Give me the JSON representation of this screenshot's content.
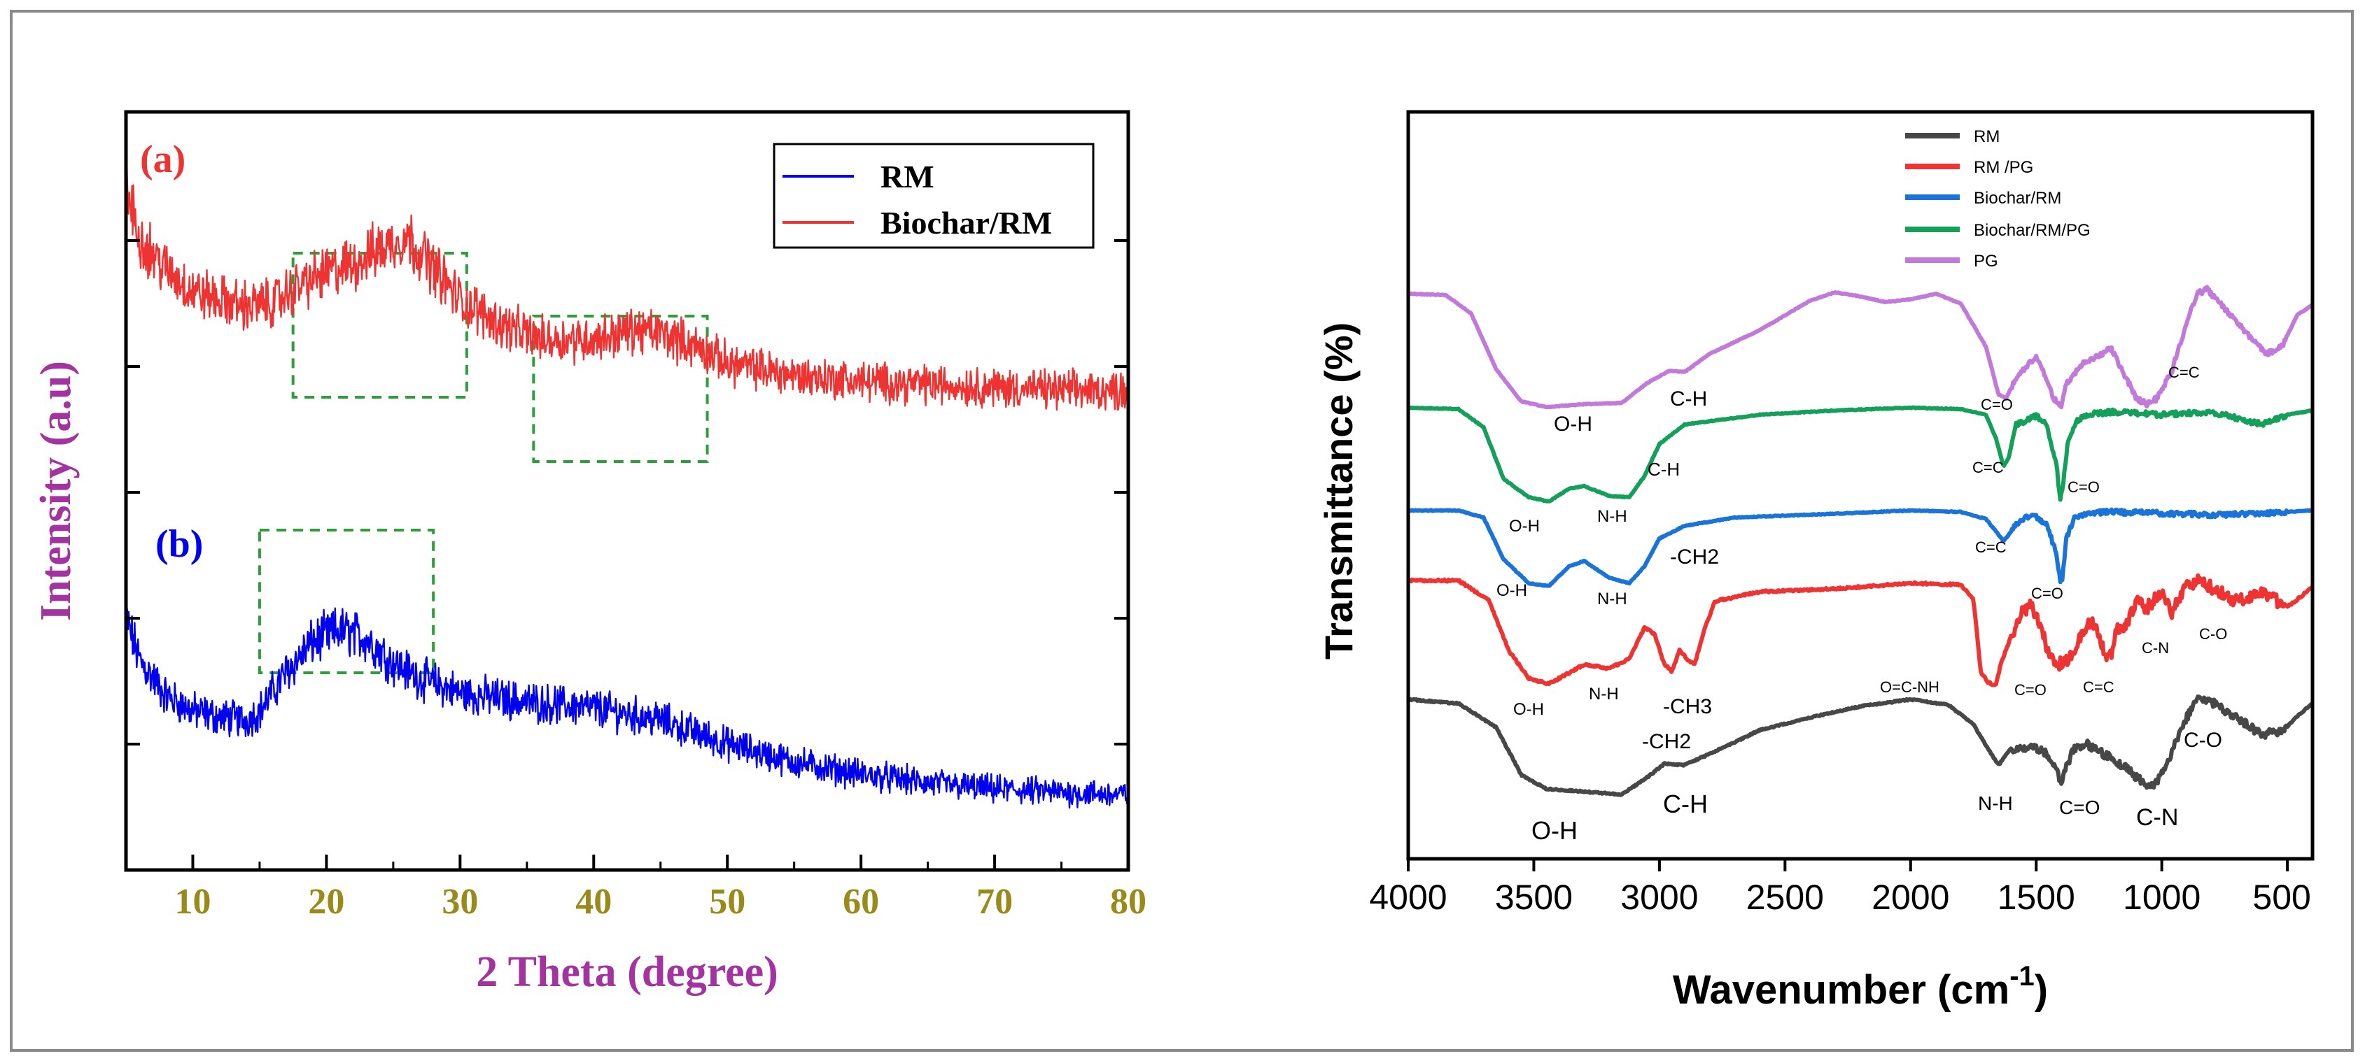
{
  "chart_data": [
    {
      "type": "line",
      "title": "",
      "xlabel": "2 Theta (degree)",
      "ylabel": "Intensity (a.u)",
      "xlim": [
        5,
        80
      ],
      "xticks": [
        10,
        20,
        30,
        40,
        50,
        60,
        70,
        80
      ],
      "yticks_shown": false,
      "grid": false,
      "legend_position": "top-right",
      "colors": {
        "axis_label": "#a3339f",
        "tick_label": "#9a8a1a",
        "highlight_box": "#2e9e3a"
      },
      "series": [
        {
          "name": "RM",
          "label": "(b)",
          "color": "#0000ee",
          "profile": [
            [
              5,
              0.62
            ],
            [
              6,
              0.48
            ],
            [
              8,
              0.36
            ],
            [
              10,
              0.31
            ],
            [
              12,
              0.29
            ],
            [
              14,
              0.28
            ],
            [
              15,
              0.31
            ],
            [
              17,
              0.44
            ],
            [
              19,
              0.54
            ],
            [
              21,
              0.58
            ],
            [
              23,
              0.55
            ],
            [
              25,
              0.47
            ],
            [
              27,
              0.42
            ],
            [
              30,
              0.37
            ],
            [
              35,
              0.34
            ],
            [
              40,
              0.32
            ],
            [
              45,
              0.28
            ],
            [
              50,
              0.2
            ],
            [
              55,
              0.14
            ],
            [
              60,
              0.1
            ],
            [
              65,
              0.07
            ],
            [
              70,
              0.05
            ],
            [
              75,
              0.04
            ],
            [
              80,
              0.03
            ]
          ]
        },
        {
          "name": "Biochar/RM",
          "label": "(a)",
          "color": "#ee3333",
          "profile": [
            [
              5,
              1.0
            ],
            [
              6,
              0.84
            ],
            [
              8,
              0.73
            ],
            [
              10,
              0.66
            ],
            [
              12,
              0.63
            ],
            [
              14,
              0.61
            ],
            [
              16,
              0.62
            ],
            [
              18,
              0.68
            ],
            [
              20,
              0.72
            ],
            [
              22,
              0.75
            ],
            [
              24,
              0.8
            ],
            [
              26,
              0.84
            ],
            [
              28,
              0.74
            ],
            [
              30,
              0.63
            ],
            [
              33,
              0.55
            ],
            [
              36,
              0.5
            ],
            [
              40,
              0.5
            ],
            [
              43,
              0.53
            ],
            [
              45,
              0.52
            ],
            [
              48,
              0.47
            ],
            [
              50,
              0.42
            ],
            [
              55,
              0.38
            ],
            [
              60,
              0.36
            ],
            [
              65,
              0.35
            ],
            [
              70,
              0.34
            ],
            [
              75,
              0.33
            ],
            [
              80,
              0.33
            ]
          ]
        }
      ],
      "highlight_boxes": [
        {
          "x_range": [
            17.5,
            30.5
          ],
          "panel": "(a)"
        },
        {
          "x_range": [
            35.5,
            48.5
          ],
          "panel": "(a)"
        },
        {
          "x_range": [
            15,
            28
          ],
          "panel": "(b)"
        }
      ]
    },
    {
      "type": "line",
      "title": "",
      "xlabel": "Wavenumber (cm-1)",
      "xlabel_main": "Wavenumber (cm",
      "xlabel_sup": "-1",
      "xlabel_end": ")",
      "ylabel": "Transmittance (%)",
      "xlim": [
        4000,
        400
      ],
      "x_reversed": true,
      "xticks": [
        4000,
        3500,
        3000,
        2500,
        2000,
        1500,
        1000,
        500
      ],
      "grid": false,
      "legend_position": "top-right",
      "series": [
        {
          "name": "RM",
          "color": "#474747"
        },
        {
          "name": "RM /PG",
          "color": "#ee3333"
        },
        {
          "name": "Biochar/RM",
          "color": "#1a73d8"
        },
        {
          "name": "Biochar/RM/PG",
          "color": "#14a05a"
        },
        {
          "name": "PG",
          "color": "#c17ad9"
        }
      ],
      "annotations": [
        {
          "text": "O-H",
          "series": "PG"
        },
        {
          "text": "C-H",
          "series": "PG"
        },
        {
          "text": "C=O",
          "series": "PG"
        },
        {
          "text": "C=C",
          "series": "PG"
        },
        {
          "text": "O-H",
          "series": "Biochar/RM/PG"
        },
        {
          "text": "N-H",
          "series": "Biochar/RM/PG"
        },
        {
          "text": "C-H",
          "series": "Biochar/RM/PG"
        },
        {
          "text": "C=C",
          "series": "Biochar/RM/PG"
        },
        {
          "text": "C=O",
          "series": "Biochar/RM/PG"
        },
        {
          "text": "O-H",
          "series": "Biochar/RM"
        },
        {
          "text": "N-H",
          "series": "Biochar/RM"
        },
        {
          "text": "-CH2",
          "series": "Biochar/RM"
        },
        {
          "text": "C=C",
          "series": "Biochar/RM"
        },
        {
          "text": "C=O",
          "series": "Biochar/RM"
        },
        {
          "text": "O-H",
          "series": "RM /PG"
        },
        {
          "text": "N-H",
          "series": "RM /PG"
        },
        {
          "text": "-CH3",
          "series": "RM /PG"
        },
        {
          "text": "O=C-NH",
          "series": "RM /PG"
        },
        {
          "text": "C=O",
          "series": "RM /PG"
        },
        {
          "text": "C=C",
          "series": "RM /PG"
        },
        {
          "text": "C-N",
          "series": "RM /PG"
        },
        {
          "text": "C-O",
          "series": "RM /PG"
        },
        {
          "text": "-CH2",
          "series": "RM"
        },
        {
          "text": "O-H",
          "series": "RM"
        },
        {
          "text": "C-H",
          "series": "RM"
        },
        {
          "text": "N-H",
          "series": "RM"
        },
        {
          "text": "C=O",
          "series": "RM"
        },
        {
          "text": "C-N",
          "series": "RM"
        },
        {
          "text": "C-O",
          "series": "RM"
        }
      ]
    }
  ]
}
